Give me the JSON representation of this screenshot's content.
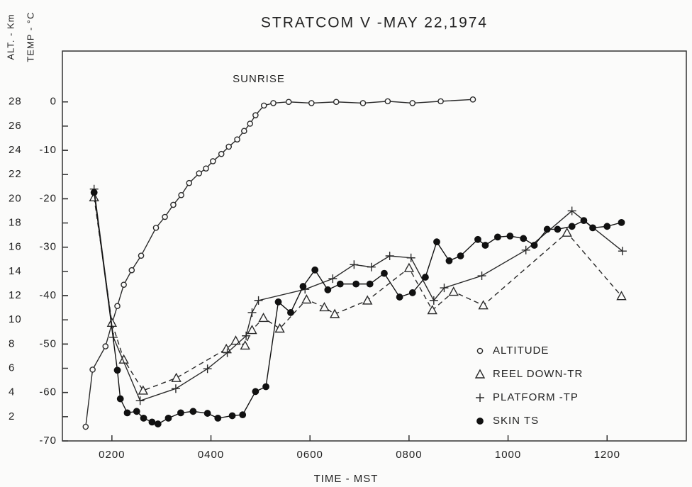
{
  "chart_data": {
    "type": "line",
    "title": "STRATCOM V -MAY 22,1974",
    "y_label": "ALT. - Km",
    "y2_label": "TEMP - °C",
    "x_label": "TIME - MST",
    "annotation": "SUNRISE",
    "xlim": [
      1.0,
      13.6
    ],
    "xticks": [
      {
        "value": 2,
        "label": "0200"
      },
      {
        "value": 4,
        "label": "0400"
      },
      {
        "value": 6,
        "label": "0600"
      },
      {
        "value": 8,
        "label": "0800"
      },
      {
        "value": 10,
        "label": "1000"
      },
      {
        "value": 12,
        "label": "1200"
      }
    ],
    "ylim": [
      0,
      32.2
    ],
    "yticks": [
      2,
      4,
      6,
      8,
      10,
      12,
      14,
      16,
      18,
      20,
      22,
      24,
      26,
      28
    ],
    "y2lim": [
      -70,
      10.5
    ],
    "y2ticks": [
      0,
      -10,
      -20,
      -30,
      -40,
      -50,
      -60,
      -70
    ],
    "legend": "lower right",
    "series": [
      {
        "name": "ALTITUDE",
        "color": "#2a2a2a",
        "marker": "open-circle",
        "dash": false,
        "x": [
          1.47,
          1.61,
          1.87,
          2.0,
          2.11,
          2.24,
          2.4,
          2.59,
          2.89,
          3.07,
          3.24,
          3.4,
          3.56,
          3.76,
          3.9,
          4.04,
          4.21,
          4.36,
          4.53,
          4.67,
          4.79,
          4.9,
          5.07,
          5.26,
          5.57,
          6.03,
          6.53,
          7.07,
          7.57,
          8.07,
          8.64,
          9.29
        ],
        "values": [
          1.17,
          5.89,
          7.81,
          9.68,
          11.14,
          12.9,
          14.1,
          15.3,
          17.6,
          18.5,
          19.5,
          20.3,
          21.3,
          22.1,
          22.5,
          23.1,
          23.7,
          24.3,
          24.9,
          25.6,
          26.2,
          26.9,
          27.7,
          27.9,
          28.0,
          27.9,
          28.0,
          27.9,
          28.05,
          27.9,
          28.05,
          28.2
        ]
      },
      {
        "name": "REEL DOWN-TR",
        "color": "#2a2a2a",
        "marker": "triangle",
        "dash": true,
        "axis": "y2",
        "x": [
          1.64,
          2.0,
          2.24,
          2.63,
          3.3,
          4.31,
          4.5,
          4.69,
          4.83,
          5.06,
          5.39,
          5.93,
          6.29,
          6.5,
          7.16,
          8.0,
          8.47,
          8.9,
          9.5,
          11.19,
          12.29
        ],
        "values": [
          -19.7,
          -45.6,
          -53.2,
          -59.6,
          -57.0,
          -51.0,
          -49.3,
          -50.3,
          -47.1,
          -44.6,
          -46.8,
          -40.8,
          -42.4,
          -43.8,
          -41.0,
          -34.3,
          -43.0,
          -39.2,
          -42.0,
          -27.0,
          -40.1
        ]
      },
      {
        "name": "PLATFORM -TP",
        "color": "#2a2a2a",
        "marker": "plus",
        "dash": false,
        "axis": "y2",
        "x": [
          1.64,
          2.03,
          2.57,
          3.29,
          3.93,
          4.33,
          4.71,
          4.83,
          4.96,
          5.9,
          6.46,
          6.89,
          7.24,
          7.61,
          8.04,
          8.5,
          8.71,
          9.47,
          10.36,
          11.29,
          12.31
        ],
        "values": [
          -18.0,
          -48.6,
          -61.7,
          -59.2,
          -55.1,
          -51.8,
          -48.3,
          -43.5,
          -41.0,
          -38.7,
          -36.5,
          -33.6,
          -34.1,
          -31.8,
          -32.2,
          -41.0,
          -38.4,
          -35.9,
          -30.6,
          -22.5,
          -30.8
        ]
      },
      {
        "name": "SKIN TS",
        "color": "#111111",
        "marker": "dot",
        "dash": false,
        "axis": "y2",
        "x": [
          1.64,
          2.11,
          2.17,
          2.31,
          2.5,
          2.64,
          2.81,
          2.93,
          3.14,
          3.39,
          3.64,
          3.93,
          4.14,
          4.43,
          4.64,
          4.9,
          5.11,
          5.36,
          5.61,
          5.86,
          6.1,
          6.36,
          6.61,
          6.93,
          7.21,
          7.5,
          7.81,
          8.07,
          8.33,
          8.56,
          8.81,
          9.04,
          9.39,
          9.54,
          9.79,
          10.04,
          10.31,
          10.53,
          10.79,
          11.0,
          11.29,
          11.53,
          11.71,
          12.0,
          12.29
        ],
        "values": [
          -18.7,
          -55.4,
          -61.3,
          -64.2,
          -63.9,
          -65.3,
          -66.1,
          -66.5,
          -65.3,
          -64.2,
          -63.9,
          -64.3,
          -65.3,
          -64.8,
          -64.6,
          -59.8,
          -58.8,
          -41.3,
          -43.5,
          -38.1,
          -34.7,
          -38.8,
          -37.6,
          -37.6,
          -37.6,
          -35.4,
          -40.3,
          -39.4,
          -36.2,
          -28.9,
          -32.8,
          -31.8,
          -28.4,
          -29.6,
          -27.9,
          -27.7,
          -28.2,
          -29.6,
          -26.3,
          -26.3,
          -25.7,
          -24.5,
          -26.0,
          -25.7,
          -24.9
        ]
      }
    ]
  }
}
